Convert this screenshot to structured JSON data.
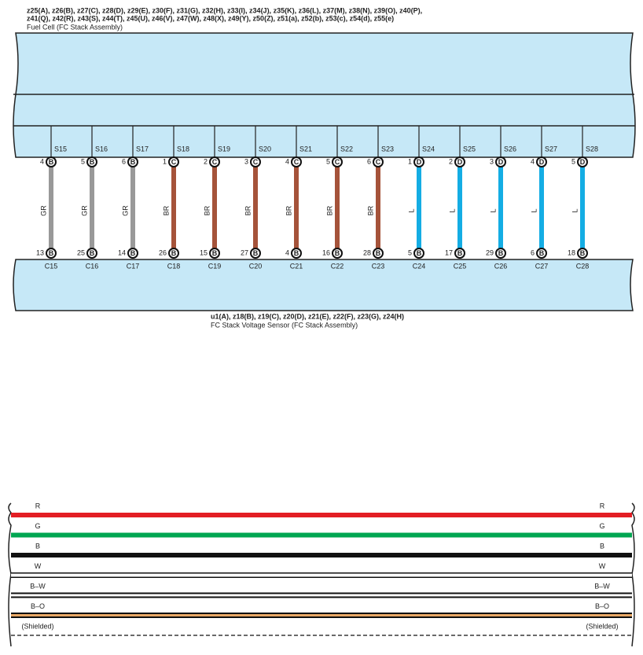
{
  "top_component": {
    "codes": [
      "z25(A), z26(B), z27(C), z28(D), z29(E), z30(F), z31(G), z32(H), z33(I), z34(J), z35(K), z36(L), z37(M), z38(N), z39(O), z40(P),",
      "z41(Q), z42(R), z43(S), z44(T), z45(U), z46(V), z47(W), z48(X), z49(Y), z50(Z), z51(a), z52(b), z53(c), z54(d), z55(e)"
    ],
    "name": "Fuel Cell (FC Stack Assembly)"
  },
  "wires": [
    {
      "top_label": "S15",
      "top_pin": "4",
      "top_connector": "B",
      "wire_code": "GR",
      "color": "#999999",
      "bottom_pin": "13",
      "bottom_connector": "B",
      "bottom_label": "C15"
    },
    {
      "top_label": "S16",
      "top_pin": "5",
      "top_connector": "B",
      "wire_code": "GR",
      "color": "#999999",
      "bottom_pin": "25",
      "bottom_connector": "B",
      "bottom_label": "C16"
    },
    {
      "top_label": "S17",
      "top_pin": "6",
      "top_connector": "B",
      "wire_code": "GR",
      "color": "#999999",
      "bottom_pin": "14",
      "bottom_connector": "B",
      "bottom_label": "C17"
    },
    {
      "top_label": "S18",
      "top_pin": "1",
      "top_connector": "C",
      "wire_code": "BR",
      "color": "#a5533a",
      "bottom_pin": "26",
      "bottom_connector": "B",
      "bottom_label": "C18"
    },
    {
      "top_label": "S19",
      "top_pin": "2",
      "top_connector": "C",
      "wire_code": "BR",
      "color": "#a5533a",
      "bottom_pin": "15",
      "bottom_connector": "B",
      "bottom_label": "C19"
    },
    {
      "top_label": "S20",
      "top_pin": "3",
      "top_connector": "C",
      "wire_code": "BR",
      "color": "#a5533a",
      "bottom_pin": "27",
      "bottom_connector": "B",
      "bottom_label": "C20"
    },
    {
      "top_label": "S21",
      "top_pin": "4",
      "top_connector": "C",
      "wire_code": "BR",
      "color": "#a5533a",
      "bottom_pin": "4",
      "bottom_connector": "B",
      "bottom_label": "C21"
    },
    {
      "top_label": "S22",
      "top_pin": "5",
      "top_connector": "C",
      "wire_code": "BR",
      "color": "#a5533a",
      "bottom_pin": "16",
      "bottom_connector": "B",
      "bottom_label": "C22"
    },
    {
      "top_label": "S23",
      "top_pin": "6",
      "top_connector": "C",
      "wire_code": "BR",
      "color": "#a5533a",
      "bottom_pin": "28",
      "bottom_connector": "B",
      "bottom_label": "C23"
    },
    {
      "top_label": "S24",
      "top_pin": "1",
      "top_connector": "D",
      "wire_code": "L",
      "color": "#14ade4",
      "bottom_pin": "5",
      "bottom_connector": "B",
      "bottom_label": "C24"
    },
    {
      "top_label": "S25",
      "top_pin": "2",
      "top_connector": "D",
      "wire_code": "L",
      "color": "#14ade4",
      "bottom_pin": "17",
      "bottom_connector": "B",
      "bottom_label": "C25"
    },
    {
      "top_label": "S26",
      "top_pin": "3",
      "top_connector": "D",
      "wire_code": "L",
      "color": "#14ade4",
      "bottom_pin": "29",
      "bottom_connector": "B",
      "bottom_label": "C26"
    },
    {
      "top_label": "S27",
      "top_pin": "4",
      "top_connector": "D",
      "wire_code": "L",
      "color": "#14ade4",
      "bottom_pin": "6",
      "bottom_connector": "B",
      "bottom_label": "C27"
    },
    {
      "top_label": "S28",
      "top_pin": "5",
      "top_connector": "D",
      "wire_code": "L",
      "color": "#14ade4",
      "bottom_pin": "18",
      "bottom_connector": "B",
      "bottom_label": "C28"
    }
  ],
  "bottom_component": {
    "codes": "u1(A), z18(B), z19(C), z20(D), z21(E), z22(F), z23(G), z24(H)",
    "name": "FC Stack Voltage Sensor (FC Stack Assembly)"
  },
  "legend": [
    {
      "left": "R",
      "right": "R",
      "style": "red"
    },
    {
      "left": "G",
      "right": "G",
      "style": "green"
    },
    {
      "left": "B",
      "right": "B",
      "style": "black"
    },
    {
      "left": "W",
      "right": "W",
      "style": "white"
    },
    {
      "left": "B–W",
      "right": "B–W",
      "style": "black-white"
    },
    {
      "left": "B–O",
      "right": "B–O",
      "style": "black-orange"
    },
    {
      "left": "(Shielded)",
      "right": "(Shielded)",
      "style": "shielded"
    }
  ]
}
